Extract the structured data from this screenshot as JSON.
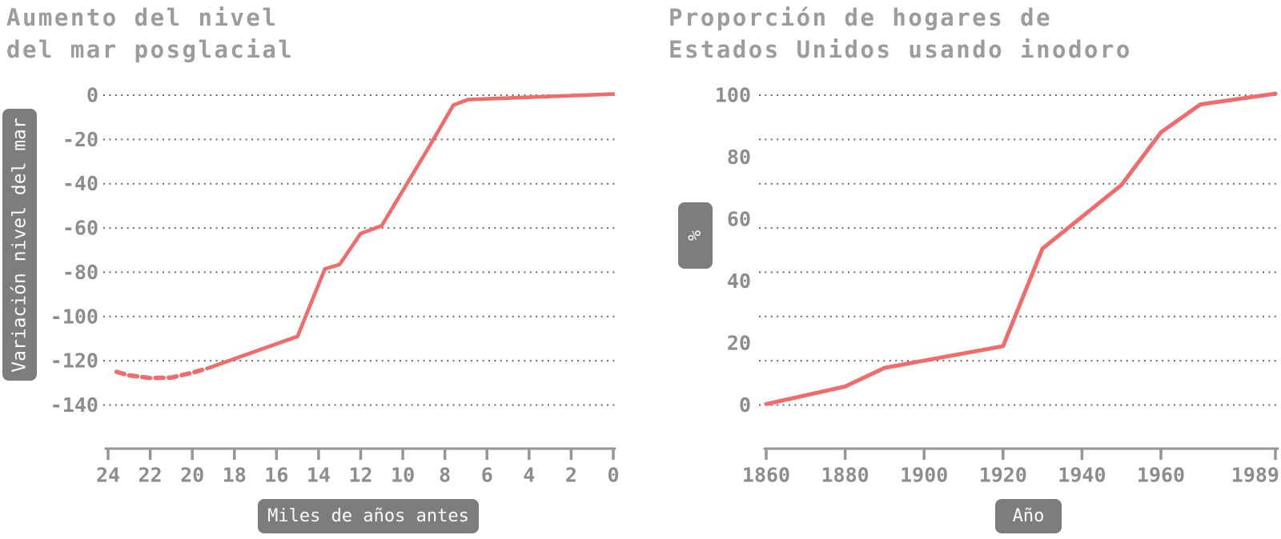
{
  "colors": {
    "line": "#f26b6b",
    "title_text": "#9c9c9c",
    "tick_text": "#8d8d8d",
    "grid": "#585858",
    "axis": "#969696",
    "box_bg": "#7d7d7d",
    "box_text": "#fafafa",
    "background": "#ffffff"
  },
  "charts": [
    {
      "title_lines": [
        "Aumento del nivel",
        "del mar posglacial"
      ],
      "y_axis_label": "Variación nivel del mar",
      "x_axis_label": "Miles de años antes",
      "y_tick_labels": [
        "0",
        "-20",
        "-40",
        "-60",
        "-80",
        "-100",
        "-120",
        "-140"
      ],
      "x_tick_labels": [
        "24",
        "22",
        "20",
        "18",
        "16",
        "14",
        "12",
        "10",
        "8",
        "6",
        "4",
        "2",
        "0"
      ]
    },
    {
      "title_lines": [
        "Proporción de hogares de",
        "Estados Unidos usando inodoro"
      ],
      "y_axis_label": "%",
      "x_axis_label": "Año",
      "y_tick_labels": [
        "100",
        "80",
        "60",
        "40",
        "20",
        "0"
      ],
      "x_tick_labels": [
        "1860",
        "1880",
        "1900",
        "1920",
        "1940",
        "1960",
        "1989"
      ]
    }
  ],
  "chart_data": [
    {
      "type": "line",
      "title": "Aumento del nivel del mar posglacial",
      "xlabel": "Miles de años antes",
      "ylabel": "Variación nivel del mar",
      "xlim": [
        24,
        0
      ],
      "x_reversed": true,
      "ylim": [
        -140,
        0
      ],
      "grid": true,
      "legend": "none",
      "segments": [
        {
          "style": "dashed",
          "points": [
            [
              23.6,
              -125
            ],
            [
              23,
              -126.6
            ],
            [
              22,
              -127.8
            ],
            [
              21,
              -127.6
            ],
            [
              20,
              -125.4
            ],
            [
              19.3,
              -123.5
            ]
          ]
        },
        {
          "style": "solid",
          "points": [
            [
              19.3,
              -123.5
            ],
            [
              15,
              -109
            ],
            [
              13.7,
              -78.5
            ],
            [
              13,
              -76.5
            ],
            [
              12,
              -62.5
            ],
            [
              11,
              -59
            ],
            [
              8.7,
              -22.5
            ],
            [
              7.6,
              -4.5
            ],
            [
              6.9,
              -2
            ],
            [
              0,
              0.5
            ]
          ]
        }
      ]
    },
    {
      "type": "line",
      "title": "Proporción de hogares de Estados Unidos usando inodoro",
      "xlabel": "Año",
      "ylabel": "%",
      "xlim": [
        1860,
        1989
      ],
      "ylim": [
        0,
        100
      ],
      "grid": true,
      "legend": "none",
      "points": [
        [
          1860,
          0.3
        ],
        [
          1880,
          6
        ],
        [
          1890,
          12
        ],
        [
          1920,
          19
        ],
        [
          1930,
          50.5
        ],
        [
          1950,
          71
        ],
        [
          1960,
          88
        ],
        [
          1970,
          97
        ],
        [
          1989,
          100.5
        ]
      ]
    }
  ]
}
